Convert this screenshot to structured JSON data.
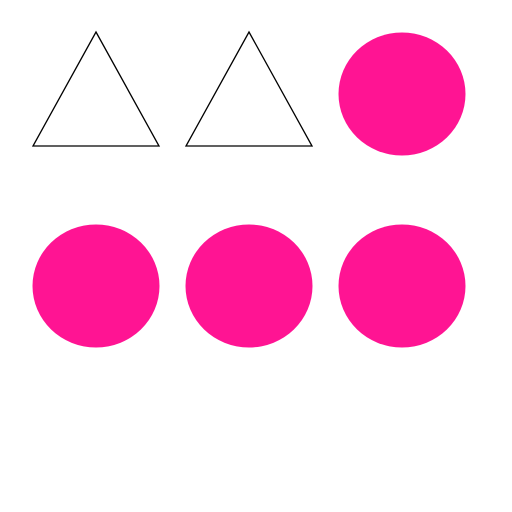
{
  "colors": {
    "background": "#ffffff",
    "circle_fill": "#ff1493",
    "triangle_stroke": "#000000",
    "triangle_fill": "#ffffff"
  },
  "grid": {
    "rows": [
      {
        "row": 1,
        "shapes": [
          {
            "type": "triangle",
            "style": "outline"
          },
          {
            "type": "triangle",
            "style": "outline"
          },
          {
            "type": "circle",
            "style": "filled"
          }
        ]
      },
      {
        "row": 2,
        "shapes": [
          {
            "type": "circle",
            "style": "filled"
          },
          {
            "type": "circle",
            "style": "filled"
          },
          {
            "type": "circle",
            "style": "filled"
          }
        ]
      }
    ],
    "counts": {
      "triangles": 2,
      "circles": 4,
      "total": 6
    }
  }
}
